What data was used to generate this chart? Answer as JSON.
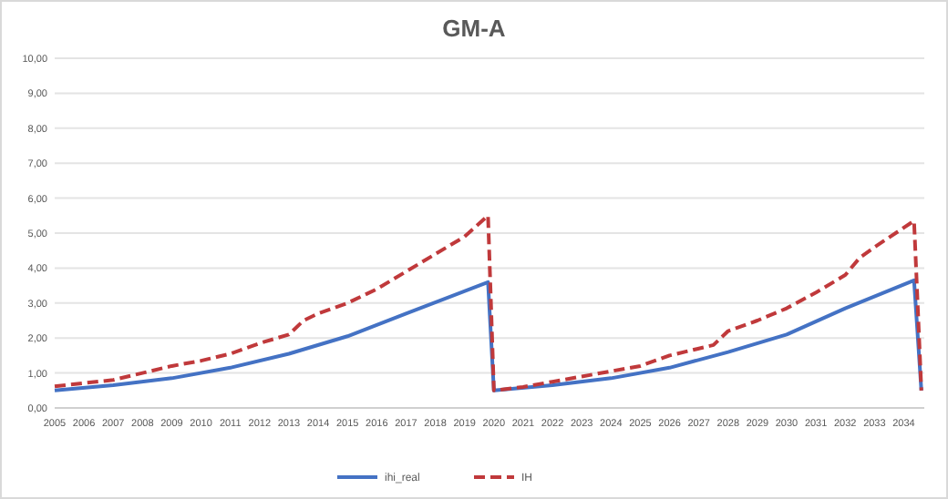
{
  "chart_data": {
    "type": "line",
    "title": "GM-A",
    "xlim": [
      2005,
      2034.7
    ],
    "xticks": [
      2005,
      2006,
      2007,
      2008,
      2009,
      2010,
      2011,
      2012,
      2013,
      2014,
      2015,
      2016,
      2017,
      2018,
      2019,
      2020,
      2021,
      2022,
      2023,
      2024,
      2025,
      2026,
      2027,
      2028,
      2029,
      2030,
      2031,
      2032,
      2033,
      2034
    ],
    "ylim": [
      0,
      10
    ],
    "yticks": [
      {
        "value": 0,
        "label": "0,00"
      },
      {
        "value": 1,
        "label": "1,00"
      },
      {
        "value": 2,
        "label": "2,00"
      },
      {
        "value": 3,
        "label": "3,00"
      },
      {
        "value": 4,
        "label": "4,00"
      },
      {
        "value": 5,
        "label": "5,00"
      },
      {
        "value": 6,
        "label": "6,00"
      },
      {
        "value": 7,
        "label": "7,00"
      },
      {
        "value": 8,
        "label": "8,00"
      },
      {
        "value": 9,
        "label": "9,00"
      },
      {
        "value": 10,
        "label": "10,00"
      }
    ],
    "grid": "y",
    "legend": "bottom",
    "series": [
      {
        "name": "ihi_real",
        "color": "#4472c4",
        "line_style": "solid",
        "x": [
          2005,
          2007,
          2009,
          2011,
          2013,
          2015,
          2017,
          2019.8,
          2020,
          2022,
          2024,
          2026,
          2028,
          2030,
          2032,
          2034.35,
          2034.6
        ],
        "values": [
          0.5,
          0.65,
          0.85,
          1.15,
          1.55,
          2.05,
          2.7,
          3.6,
          0.5,
          0.65,
          0.85,
          1.15,
          1.6,
          2.1,
          2.85,
          3.65,
          0.5
        ]
      },
      {
        "name": "IH",
        "color": "#c0393b",
        "line_style": "dashed",
        "x": [
          2005,
          2007,
          2008,
          2009,
          2010,
          2011,
          2012,
          2013,
          2013.5,
          2014,
          2015,
          2016,
          2017,
          2018,
          2019,
          2019.8,
          2020,
          2021,
          2022,
          2023,
          2024,
          2025,
          2026,
          2027,
          2027.5,
          2028,
          2029,
          2030,
          2031,
          2032,
          2032.5,
          2033,
          2034.35,
          2034.6
        ],
        "values": [
          0.62,
          0.8,
          1.0,
          1.2,
          1.35,
          1.55,
          1.85,
          2.1,
          2.5,
          2.7,
          3.0,
          3.4,
          3.9,
          4.4,
          4.9,
          5.5,
          0.5,
          0.6,
          0.75,
          0.9,
          1.05,
          1.2,
          1.5,
          1.7,
          1.8,
          2.2,
          2.5,
          2.85,
          3.3,
          3.8,
          4.3,
          4.6,
          5.35,
          0.5
        ]
      }
    ]
  }
}
